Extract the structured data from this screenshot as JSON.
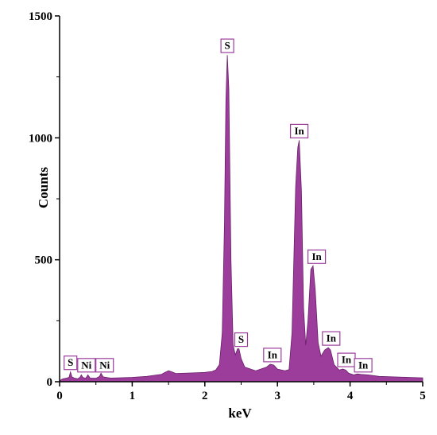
{
  "chart_data": {
    "type": "area",
    "title": "",
    "xlabel": "keV",
    "ylabel": "Counts",
    "xlim": [
      0,
      5
    ],
    "ylim": [
      0,
      1500
    ],
    "xticks": [
      0,
      1,
      2,
      3,
      4,
      5
    ],
    "yticks": [
      0,
      500,
      1000,
      1500
    ],
    "x_tick_labels": [
      "0",
      "1",
      "2",
      "3",
      "4",
      "5"
    ],
    "y_tick_labels": [
      "0",
      "500",
      "1000",
      "1500"
    ],
    "grid": false,
    "legend": "none",
    "fill_color": "#9c3d9c",
    "label_box_color": "#9c3d9c",
    "series": [
      {
        "values": [
          [
            0.0,
            0
          ],
          [
            0.02,
            8
          ],
          [
            0.05,
            12
          ],
          [
            0.1,
            15
          ],
          [
            0.13,
            18
          ],
          [
            0.15,
            40
          ],
          [
            0.17,
            20
          ],
          [
            0.2,
            15
          ],
          [
            0.25,
            12
          ],
          [
            0.28,
            18
          ],
          [
            0.3,
            28
          ],
          [
            0.32,
            18
          ],
          [
            0.36,
            14
          ],
          [
            0.39,
            28
          ],
          [
            0.42,
            15
          ],
          [
            0.5,
            14
          ],
          [
            0.55,
            22
          ],
          [
            0.57,
            35
          ],
          [
            0.6,
            20
          ],
          [
            0.7,
            15
          ],
          [
            0.8,
            16
          ],
          [
            1.0,
            18
          ],
          [
            1.2,
            22
          ],
          [
            1.3,
            26
          ],
          [
            1.4,
            30
          ],
          [
            1.45,
            38
          ],
          [
            1.5,
            45
          ],
          [
            1.55,
            40
          ],
          [
            1.6,
            34
          ],
          [
            1.8,
            36
          ],
          [
            2.0,
            38
          ],
          [
            2.1,
            42
          ],
          [
            2.15,
            48
          ],
          [
            2.2,
            70
          ],
          [
            2.24,
            200
          ],
          [
            2.27,
            650
          ],
          [
            2.29,
            1150
          ],
          [
            2.31,
            1340
          ],
          [
            2.33,
            1200
          ],
          [
            2.36,
            500
          ],
          [
            2.39,
            150
          ],
          [
            2.42,
            110
          ],
          [
            2.45,
            135
          ],
          [
            2.47,
            135
          ],
          [
            2.5,
            95
          ],
          [
            2.55,
            60
          ],
          [
            2.7,
            45
          ],
          [
            2.85,
            60
          ],
          [
            2.9,
            72
          ],
          [
            2.95,
            68
          ],
          [
            3.0,
            52
          ],
          [
            3.1,
            45
          ],
          [
            3.16,
            50
          ],
          [
            3.2,
            200
          ],
          [
            3.25,
            800
          ],
          [
            3.28,
            960
          ],
          [
            3.3,
            990
          ],
          [
            3.33,
            780
          ],
          [
            3.36,
            300
          ],
          [
            3.39,
            150
          ],
          [
            3.42,
            250
          ],
          [
            3.46,
            460
          ],
          [
            3.49,
            475
          ],
          [
            3.52,
            380
          ],
          [
            3.56,
            160
          ],
          [
            3.6,
            105
          ],
          [
            3.65,
            130
          ],
          [
            3.7,
            140
          ],
          [
            3.73,
            130
          ],
          [
            3.78,
            70
          ],
          [
            3.85,
            48
          ],
          [
            3.9,
            52
          ],
          [
            3.94,
            48
          ],
          [
            3.98,
            35
          ],
          [
            4.05,
            28
          ],
          [
            4.1,
            32
          ],
          [
            4.15,
            30
          ],
          [
            4.25,
            28
          ],
          [
            4.4,
            22
          ],
          [
            4.6,
            20
          ],
          [
            4.8,
            18
          ],
          [
            5.0,
            16
          ]
        ]
      }
    ],
    "annotations": [
      {
        "label": "S",
        "x": 0.15,
        "y": 40
      },
      {
        "label": "Ni",
        "x": 0.37,
        "y": 30
      },
      {
        "label": "Ni",
        "x": 0.62,
        "y": 30
      },
      {
        "label": "S",
        "x": 2.31,
        "y": 1340
      },
      {
        "label": "S",
        "x": 2.5,
        "y": 135
      },
      {
        "label": "In",
        "x": 2.93,
        "y": 72
      },
      {
        "label": "In",
        "x": 3.3,
        "y": 990
      },
      {
        "label": "In",
        "x": 3.54,
        "y": 475
      },
      {
        "label": "In",
        "x": 3.74,
        "y": 140
      },
      {
        "label": "In",
        "x": 3.95,
        "y": 52
      },
      {
        "label": "In",
        "x": 4.18,
        "y": 30
      }
    ]
  }
}
